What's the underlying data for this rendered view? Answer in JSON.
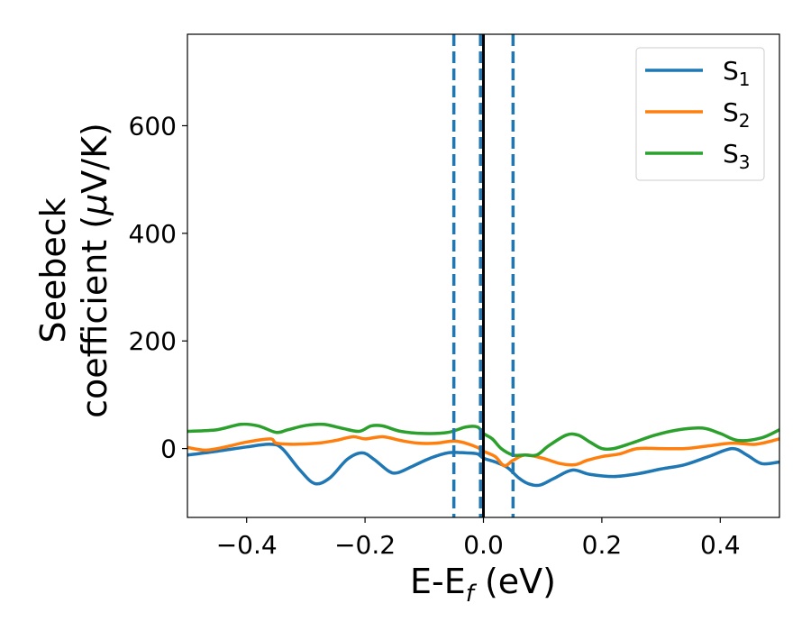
{
  "chart_data": {
    "type": "line",
    "xlabel": {
      "main": "E-E",
      "sub": "f",
      "rest": " (eV)"
    },
    "ylabel": {
      "line1": "Seebeck",
      "line2_pre": "coefficient  (",
      "mu": "μ",
      "line2_post": "V/K)"
    },
    "xlim": [
      -0.5,
      0.5
    ],
    "ylim": [
      -128,
      770
    ],
    "xticks": [
      -0.4,
      -0.2,
      0.0,
      0.2,
      0.4
    ],
    "xtick_labels": [
      "−0.4",
      "−0.2",
      "0.0",
      "0.2",
      "0.4"
    ],
    "yticks": [
      0,
      200,
      400,
      600
    ],
    "ytick_labels": [
      "0",
      "200",
      "400",
      "600"
    ],
    "legend_position": "top-right",
    "vlines": [
      {
        "x": -0.05,
        "style": "dashed",
        "color": "#1f77b4"
      },
      {
        "x": -0.005,
        "style": "dashed",
        "color": "#1f77b4"
      },
      {
        "x": 0.0,
        "style": "solid",
        "color": "#000000"
      },
      {
        "x": 0.05,
        "style": "dashed",
        "color": "#1f77b4"
      }
    ],
    "series": [
      {
        "name": "S",
        "sub": "1",
        "color": "#1f77b4",
        "x": [
          -0.5,
          -0.45,
          -0.4,
          -0.36,
          -0.34,
          -0.31,
          -0.285,
          -0.26,
          -0.23,
          -0.205,
          -0.185,
          -0.16,
          -0.145,
          -0.12,
          -0.09,
          -0.06,
          -0.03,
          -0.01,
          0.0,
          0.02,
          0.04,
          0.06,
          0.075,
          0.095,
          0.12,
          0.15,
          0.18,
          0.22,
          0.26,
          0.3,
          0.34,
          0.38,
          0.42,
          0.445,
          0.47,
          0.5
        ],
        "y": [
          -12,
          -5,
          3,
          8,
          0,
          -40,
          -65,
          -55,
          -20,
          -8,
          -20,
          -42,
          -45,
          -33,
          -18,
          -8,
          -8,
          -10,
          -18,
          -25,
          -35,
          -55,
          -65,
          -68,
          -55,
          -40,
          -48,
          -52,
          -47,
          -38,
          -30,
          -15,
          0,
          -12,
          -28,
          -25
        ]
      },
      {
        "name": "S",
        "sub": "2",
        "color": "#ff7f0e",
        "x": [
          -0.5,
          -0.47,
          -0.44,
          -0.4,
          -0.36,
          -0.35,
          -0.32,
          -0.28,
          -0.25,
          -0.22,
          -0.2,
          -0.17,
          -0.14,
          -0.11,
          -0.08,
          -0.05,
          -0.03,
          -0.01,
          0.0,
          0.02,
          0.035,
          0.05,
          0.07,
          0.1,
          0.13,
          0.155,
          0.175,
          0.2,
          0.23,
          0.26,
          0.3,
          0.34,
          0.38,
          0.42,
          0.46,
          0.5
        ],
        "y": [
          2,
          -3,
          2,
          12,
          18,
          10,
          8,
          10,
          15,
          22,
          18,
          22,
          15,
          10,
          10,
          14,
          10,
          2,
          -5,
          -15,
          -32,
          -22,
          -12,
          -18,
          -28,
          -30,
          -22,
          -15,
          -10,
          0,
          0,
          0,
          5,
          10,
          8,
          18
        ]
      },
      {
        "name": "S",
        "sub": "3",
        "color": "#2ca02c",
        "x": [
          -0.5,
          -0.45,
          -0.41,
          -0.38,
          -0.35,
          -0.33,
          -0.3,
          -0.27,
          -0.24,
          -0.21,
          -0.19,
          -0.17,
          -0.14,
          -0.1,
          -0.06,
          -0.03,
          -0.01,
          0.0,
          0.015,
          0.03,
          0.05,
          0.07,
          0.09,
          0.11,
          0.14,
          0.16,
          0.18,
          0.2,
          0.22,
          0.25,
          0.29,
          0.33,
          0.37,
          0.4,
          0.43,
          0.47,
          0.5
        ],
        "y": [
          32,
          35,
          45,
          42,
          30,
          35,
          43,
          45,
          38,
          32,
          42,
          42,
          32,
          28,
          30,
          40,
          40,
          28,
          18,
          0,
          -12,
          -12,
          -12,
          5,
          25,
          25,
          12,
          0,
          0,
          10,
          25,
          35,
          38,
          28,
          15,
          20,
          35
        ]
      }
    ]
  }
}
